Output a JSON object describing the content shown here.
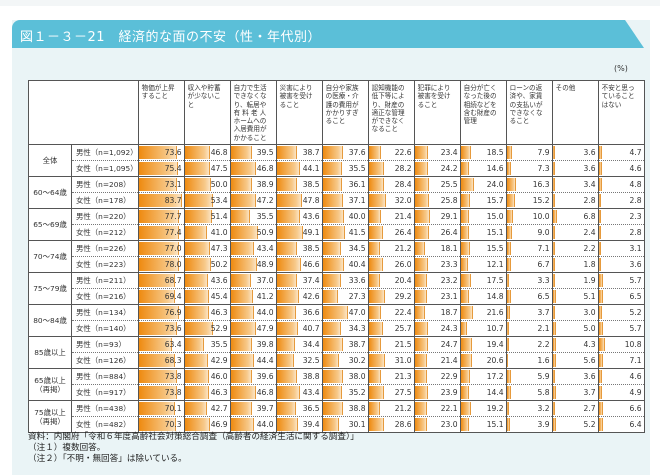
{
  "title": "図１－３－21　経済的な面の不安（性・年代別）",
  "unit": "(%)",
  "columns": [
    "物価が上昇\nすること",
    "収入や貯蓄\nが少ないこ\nと",
    "自力で生活\nできなくな\nり、転居や\n有 料 老 人\nホームへの\n入居費用が\nかかること",
    "災害により\n被害を受け\nること",
    "自分や家族\nの医療・介\n護の費用が\nかかりすぎ\nること",
    "認知機能の\n低下等によ\nり、財産の\n適正な管理\nができなく\nなること",
    "犯罪により\n被害を受け\nること",
    "自分が亡く\nなった後の\n相続などを\n含む財産の\n管理",
    "ローンの返\n済や、家賃\nの支払いが\nできなくな\nること",
    "その他",
    "不安と思っ\nていること\nはない"
  ],
  "groups": [
    {
      "label": "全体",
      "rows": [
        {
          "label": "男性（n=1,092）",
          "values": [
            73.6,
            46.8,
            39.5,
            38.7,
            37.6,
            22.6,
            23.4,
            18.5,
            7.9,
            3.6,
            4.7
          ]
        },
        {
          "label": "女性（n=1,095）",
          "values": [
            75.4,
            47.5,
            46.8,
            44.1,
            35.5,
            28.2,
            24.2,
            14.6,
            7.3,
            3.6,
            4.6
          ]
        }
      ]
    },
    {
      "label": "60～64歳",
      "rows": [
        {
          "label": "男性（n=208）",
          "values": [
            73.1,
            50.0,
            38.9,
            38.5,
            36.1,
            28.4,
            25.5,
            24.0,
            16.3,
            3.4,
            4.8
          ]
        },
        {
          "label": "女性（n=178）",
          "values": [
            83.7,
            53.4,
            47.2,
            47.8,
            37.1,
            32.0,
            25.8,
            15.7,
            15.2,
            2.8,
            2.8
          ]
        }
      ]
    },
    {
      "label": "65～69歳",
      "rows": [
        {
          "label": "男性（n=220）",
          "values": [
            77.7,
            51.4,
            35.5,
            43.6,
            40.0,
            21.4,
            29.1,
            15.0,
            10.0,
            6.8,
            2.3
          ]
        },
        {
          "label": "女性（n=212）",
          "values": [
            77.4,
            41.0,
            50.9,
            49.1,
            41.5,
            26.4,
            26.4,
            15.1,
            9.0,
            2.4,
            2.8
          ]
        }
      ]
    },
    {
      "label": "70～74歳",
      "rows": [
        {
          "label": "男性（n=226）",
          "values": [
            77.0,
            47.3,
            43.4,
            38.5,
            34.5,
            21.2,
            18.1,
            15.5,
            7.1,
            2.2,
            3.1
          ]
        },
        {
          "label": "女性（n=223）",
          "values": [
            78.0,
            50.2,
            48.9,
            46.6,
            40.4,
            26.0,
            23.3,
            12.1,
            6.7,
            1.8,
            3.6
          ]
        }
      ]
    },
    {
      "label": "75～79歳",
      "rows": [
        {
          "label": "男性（n=211）",
          "values": [
            68.7,
            43.6,
            37.0,
            37.4,
            33.6,
            20.4,
            23.2,
            17.5,
            3.3,
            1.9,
            5.7
          ]
        },
        {
          "label": "女性（n=216）",
          "values": [
            69.4,
            45.4,
            41.2,
            42.6,
            27.3,
            29.2,
            23.1,
            14.8,
            6.5,
            5.1,
            6.5
          ]
        }
      ]
    },
    {
      "label": "80～84歳",
      "rows": [
        {
          "label": "男性（n=134）",
          "values": [
            76.9,
            46.3,
            44.0,
            36.6,
            47.0,
            22.4,
            18.7,
            21.6,
            3.7,
            3.0,
            5.2
          ]
        },
        {
          "label": "女性（n=140）",
          "values": [
            73.6,
            52.9,
            47.9,
            40.7,
            34.3,
            25.7,
            24.3,
            10.7,
            2.1,
            5.0,
            5.7
          ]
        }
      ]
    },
    {
      "label": "85歳以上",
      "rows": [
        {
          "label": "男性（n=93）",
          "values": [
            63.4,
            35.5,
            39.8,
            34.4,
            38.7,
            21.5,
            24.7,
            19.4,
            2.2,
            4.3,
            10.8
          ]
        },
        {
          "label": "女性（n=126）",
          "values": [
            68.3,
            42.9,
            44.4,
            32.5,
            30.2,
            31.0,
            21.4,
            20.6,
            1.6,
            5.6,
            7.1
          ]
        }
      ]
    },
    {
      "label": "65歳以上\n（再掲）",
      "rows": [
        {
          "label": "男性（n=884）",
          "values": [
            73.8,
            46.0,
            39.6,
            38.8,
            38.0,
            21.3,
            22.9,
            17.2,
            5.9,
            3.6,
            4.6
          ]
        },
        {
          "label": "女性（n=917）",
          "values": [
            73.8,
            46.3,
            46.8,
            43.4,
            35.2,
            27.5,
            23.9,
            14.4,
            5.8,
            3.7,
            4.9
          ]
        }
      ]
    },
    {
      "label": "75歳以上\n（再掲）",
      "rows": [
        {
          "label": "男性（n=438）",
          "values": [
            70.1,
            42.7,
            39.7,
            36.5,
            38.8,
            21.2,
            22.1,
            19.2,
            3.2,
            2.7,
            6.6
          ]
        },
        {
          "label": "女性（n=482）",
          "values": [
            70.3,
            46.9,
            44.0,
            39.4,
            30.1,
            28.6,
            23.0,
            15.1,
            3.9,
            5.2,
            6.4
          ]
        }
      ]
    }
  ],
  "notes": [
    "資料：内閣府「令和６年度高齢社会対策総合調査（高齢者の経済生活に関する調査）」",
    "（注１）複数回答。",
    "（注２）「不明・無回答」は除いている。"
  ]
}
